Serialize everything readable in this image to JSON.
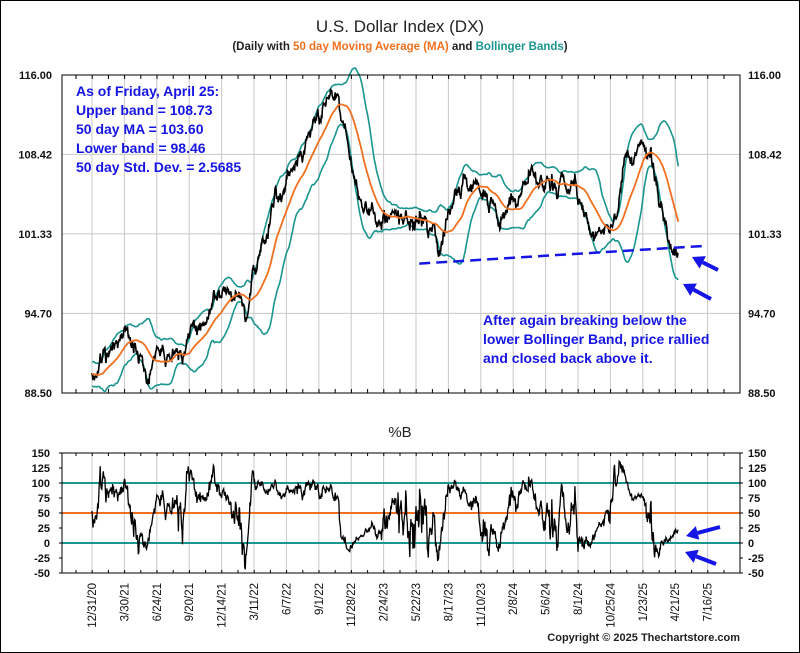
{
  "chart_data": [
    {
      "type": "line",
      "title": "U.S. Dollar Index (DX)",
      "subtitle": {
        "open": "(Daily with ",
        "ma": "50 day Moving Average (MA)",
        "and": " and ",
        "bands": "Bollinger Bands",
        "close": ")"
      },
      "yscale": "log",
      "ylim": [
        88.5,
        116.0
      ],
      "yticks": [
        "116.00",
        "108.42",
        "101.33",
        "94.70",
        "88.50"
      ],
      "ytick_values": [
        116.0,
        108.42,
        101.33,
        94.7,
        88.5
      ],
      "xticks": [
        "12/31/20",
        "3/30/21",
        "6/24/21",
        "9/20/21",
        "12/14/21",
        "3/11/22",
        "6/7/22",
        "9/1/22",
        "11/28/22",
        "2/24/23",
        "5/22/23",
        "8/17/23",
        "11/10/23",
        "2/8/24",
        "5/6/24",
        "8/1/24",
        "10/25/24",
        "1/23/25",
        "4/21/25",
        "7/16/25"
      ],
      "x_units": "quarters since 12/31/20 (approx.)",
      "series": [
        {
          "name": "DX daily close (approx.)",
          "color": "#000000",
          "points": [
            [
              0,
              89.6
            ],
            [
              0.56,
              91.0
            ],
            [
              1.02,
              93.0
            ],
            [
              1.48,
              91.0
            ],
            [
              1.79,
              89.9
            ],
            [
              2.1,
              91.8
            ],
            [
              2.72,
              92.2
            ],
            [
              3.33,
              93.4
            ],
            [
              3.8,
              95.8
            ],
            [
              4.26,
              96.2
            ],
            [
              4.72,
              95.4
            ],
            [
              5.19,
              99.1
            ],
            [
              5.65,
              103.4
            ],
            [
              6.11,
              106.5
            ],
            [
              6.57,
              108.8
            ],
            [
              7.04,
              111.6
            ],
            [
              7.35,
              114.5
            ],
            [
              7.65,
              112.6
            ],
            [
              7.96,
              107.0
            ],
            [
              8.27,
              104.3
            ],
            [
              8.73,
              103.0
            ],
            [
              9.2,
              103.0
            ],
            [
              9.81,
              101.2
            ],
            [
              10.28,
              103.0
            ],
            [
              10.74,
              100.8
            ],
            [
              11.2,
              104.3
            ],
            [
              11.67,
              106.5
            ],
            [
              12.13,
              103.9
            ],
            [
              12.59,
              103.0
            ],
            [
              13.06,
              103.9
            ],
            [
              13.52,
              106.1
            ],
            [
              14.0,
              105.6
            ],
            [
              14.44,
              105.6
            ],
            [
              14.91,
              104.3
            ],
            [
              15.52,
              100.8
            ],
            [
              15.99,
              103.0
            ],
            [
              16.45,
              106.5
            ],
            [
              16.91,
              109.5
            ],
            [
              17.28,
              107.5
            ],
            [
              17.59,
              104.3
            ],
            [
              17.9,
              100.4
            ],
            [
              18.09,
              99.6
            ]
          ]
        },
        {
          "name": "50 day Moving Average (MA)",
          "color": "#f07020"
        },
        {
          "name": "Upper Bollinger Band",
          "color": "#1a958f"
        },
        {
          "name": "Lower Bollinger Band",
          "color": "#1a958f"
        }
      ],
      "stats": {
        "heading": "As of Friday, April 25:",
        "upper": "Upper band = 108.73",
        "ma": "50 day MA = 103.60",
        "lower": "Lower band = 98.46",
        "std": "50 day Std. Dev. = 2.5685"
      },
      "support_line": {
        "from": [
          10.1,
          98.8
        ],
        "to": [
          18.9,
          100.3
        ],
        "style": "dashed",
        "color": "#1515e6"
      },
      "annotation": [
        "After again breaking below the",
        "lower Bollinger Band, price rallied",
        "and closed back above it."
      ]
    },
    {
      "type": "line",
      "title": "%B",
      "ylim": [
        -50,
        150
      ],
      "yticks": [
        "150",
        "125",
        "100",
        "75",
        "50",
        "25",
        "0",
        "-25",
        "-50"
      ],
      "ytick_values": [
        150,
        125,
        100,
        75,
        50,
        25,
        0,
        -25,
        -50
      ],
      "reference_lines": [
        {
          "value": 100,
          "color": "#1a958f"
        },
        {
          "value": 50,
          "color": "#f07020"
        },
        {
          "value": 0,
          "color": "#1a958f"
        }
      ],
      "series": [
        {
          "name": "%B",
          "color": "#000000",
          "derived_from": "price and Bollinger Bands"
        }
      ]
    }
  ],
  "copyright": "Copyright © 2025 Thechartstore.com"
}
